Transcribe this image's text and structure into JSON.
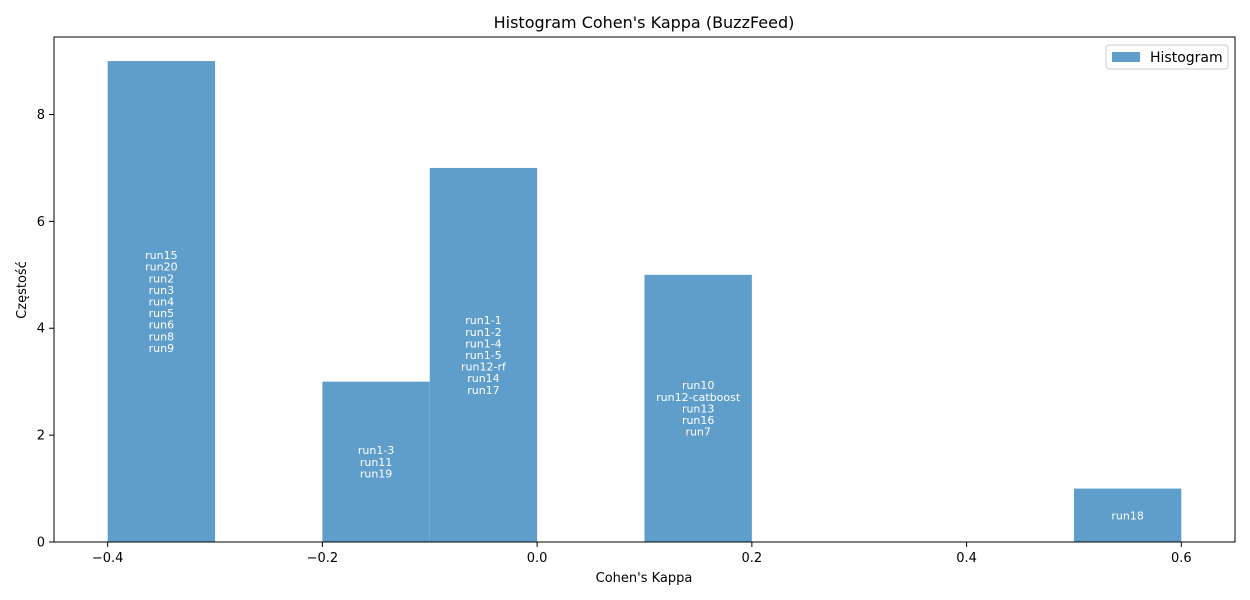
{
  "chart_data": {
    "type": "bar",
    "title": "Histogram Cohen's Kappa (BuzzFeed)",
    "xlabel": "Cohen's Kappa",
    "ylabel": "Częstość",
    "xlim": [
      -0.45,
      0.65
    ],
    "ylim": [
      0,
      9.45
    ],
    "x_ticks": [
      -0.4,
      -0.2,
      0.0,
      0.2,
      0.4,
      0.6
    ],
    "x_tick_labels": [
      "−0.4",
      "−0.2",
      "0.0",
      "0.2",
      "0.4",
      "0.6"
    ],
    "y_ticks": [
      0,
      2,
      4,
      6,
      8
    ],
    "y_tick_labels": [
      "0",
      "2",
      "4",
      "6",
      "8"
    ],
    "grid": false,
    "legend": {
      "position": "top-right",
      "entries": [
        "Histogram"
      ]
    },
    "colors": {
      "bar": "#5f9ecb",
      "bar_label": "#ffffff"
    },
    "bins": [
      {
        "x0": -0.4,
        "x1": -0.3,
        "count": 9,
        "labels": [
          "run15",
          "run20",
          "run2",
          "run3",
          "run4",
          "run5",
          "run6",
          "run8",
          "run9"
        ]
      },
      {
        "x0": -0.3,
        "x1": -0.2,
        "count": 0,
        "labels": []
      },
      {
        "x0": -0.2,
        "x1": -0.1,
        "count": 3,
        "labels": [
          "run1-3",
          "run11",
          "run19"
        ]
      },
      {
        "x0": -0.1,
        "x1": 0.0,
        "count": 7,
        "labels": [
          "run1-1",
          "run1-2",
          "run1-4",
          "run1-5",
          "run12-rf",
          "run14",
          "run17"
        ]
      },
      {
        "x0": 0.0,
        "x1": 0.1,
        "count": 0,
        "labels": []
      },
      {
        "x0": 0.1,
        "x1": 0.2,
        "count": 5,
        "labels": [
          "run10",
          "run12-catboost",
          "run13",
          "run16",
          "run7"
        ]
      },
      {
        "x0": 0.2,
        "x1": 0.3,
        "count": 0,
        "labels": []
      },
      {
        "x0": 0.3,
        "x1": 0.4,
        "count": 0,
        "labels": []
      },
      {
        "x0": 0.4,
        "x1": 0.5,
        "count": 0,
        "labels": []
      },
      {
        "x0": 0.5,
        "x1": 0.6,
        "count": 1,
        "labels": [
          "run18"
        ]
      }
    ]
  }
}
